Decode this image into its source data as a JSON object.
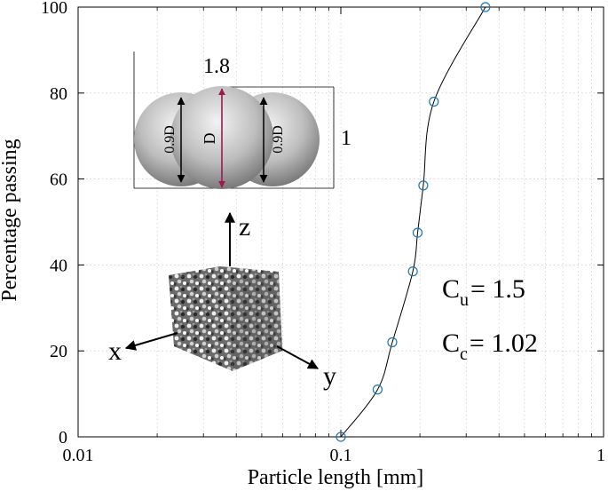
{
  "chart_data": {
    "type": "scatter",
    "xscale": "log",
    "xlim": [
      0.01,
      1
    ],
    "ylim": [
      0,
      100
    ],
    "xlabel": "Particle length [mm]",
    "ylabel": "Percentage passing",
    "grid": true,
    "x_ticks": [
      "0.01",
      "0.1",
      "1"
    ],
    "y_ticks": [
      "0",
      "20",
      "40",
      "60",
      "80",
      "100"
    ],
    "series": [
      {
        "marker": "circle",
        "line": true,
        "points": [
          {
            "x": 0.1,
            "y": 0
          },
          {
            "x": 0.138,
            "y": 11
          },
          {
            "x": 0.157,
            "y": 22
          },
          {
            "x": 0.188,
            "y": 38.5
          },
          {
            "x": 0.196,
            "y": 47.5
          },
          {
            "x": 0.206,
            "y": 58.5
          },
          {
            "x": 0.226,
            "y": 78
          },
          {
            "x": 0.355,
            "y": 100
          }
        ]
      }
    ],
    "annotations": {
      "cu": {
        "main": "C",
        "sub": "u",
        "rest": "= 1.5"
      },
      "cc": {
        "main": "C",
        "sub": "c",
        "rest": "= 1.02"
      }
    },
    "inset_particle": {
      "length_label": "1.8",
      "width_label": "1",
      "center_label": "D",
      "left_label": "0.9D",
      "right_label": "0.9D"
    },
    "inset_sample": {
      "axis_z": "z",
      "axis_x": "x",
      "axis_y": "y"
    },
    "colors": {
      "line": "#000000",
      "marker": "#1f77b4",
      "grid": "#bfbfbf",
      "diameter_arrow": "#a0174f"
    }
  }
}
